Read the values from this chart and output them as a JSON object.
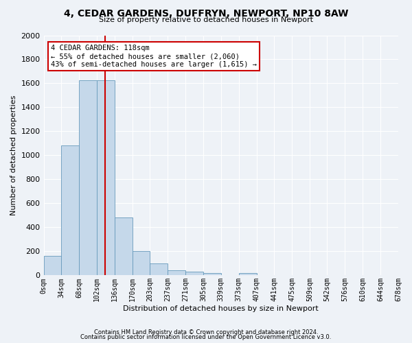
{
  "title_line1": "4, CEDAR GARDENS, DUFFRYN, NEWPORT, NP10 8AW",
  "title_line2": "Size of property relative to detached houses in Newport",
  "xlabel": "Distribution of detached houses by size in Newport",
  "ylabel": "Number of detached properties",
  "bar_color": "#c5d8ea",
  "bar_edge_color": "#6699bb",
  "annotation_box_text": "4 CEDAR GARDENS: 118sqm\n← 55% of detached houses are smaller (2,060)\n43% of semi-detached houses are larger (1,615) →",
  "annotation_box_color": "#ffffff",
  "annotation_box_edge_color": "#cc0000",
  "vline_x": 118,
  "vline_color": "#cc0000",
  "footer_line1": "Contains HM Land Registry data © Crown copyright and database right 2024.",
  "footer_line2": "Contains public sector information licensed under the Open Government Licence v3.0.",
  "background_color": "#eef2f7",
  "ylim": [
    0,
    2000
  ],
  "yticks": [
    0,
    200,
    400,
    600,
    800,
    1000,
    1200,
    1400,
    1600,
    1800,
    2000
  ],
  "bin_edges": [
    0,
    34,
    68,
    102,
    136,
    170,
    203,
    237,
    271,
    305,
    339,
    373,
    407,
    441,
    475,
    509,
    542,
    576,
    610,
    644,
    678
  ],
  "bar_heights": [
    160,
    1080,
    1625,
    1625,
    480,
    200,
    100,
    45,
    30,
    20,
    0,
    20,
    0,
    0,
    0,
    0,
    0,
    0,
    0,
    0
  ],
  "tick_labels": [
    "0sqm",
    "34sqm",
    "68sqm",
    "102sqm",
    "136sqm",
    "170sqm",
    "203sqm",
    "237sqm",
    "271sqm",
    "305sqm",
    "339sqm",
    "373sqm",
    "407sqm",
    "441sqm",
    "475sqm",
    "509sqm",
    "542sqm",
    "576sqm",
    "610sqm",
    "644sqm",
    "678sqm"
  ],
  "title_fontsize": 10,
  "subtitle_fontsize": 8,
  "ylabel_fontsize": 8,
  "xlabel_fontsize": 8,
  "ytick_fontsize": 8,
  "xtick_fontsize": 7,
  "footer_fontsize": 6,
  "annotation_fontsize": 7.5
}
